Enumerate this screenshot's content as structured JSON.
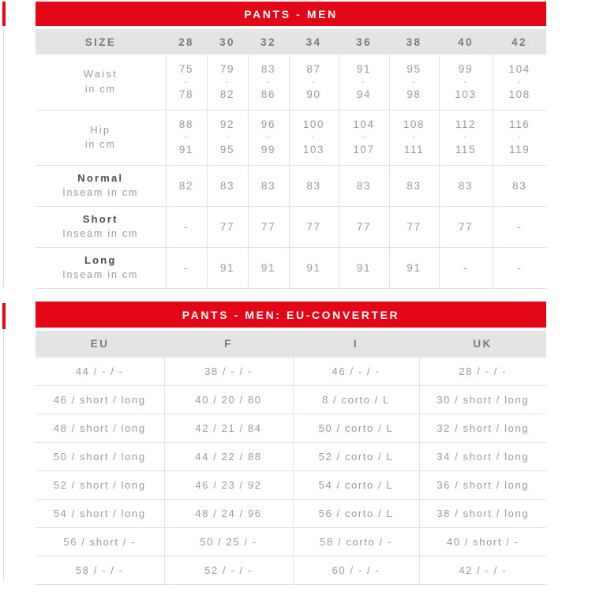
{
  "theme": {
    "accent_red": "#e30617",
    "header_row_bg": "#e4e4e4",
    "grid_line": "#e2e2e2",
    "data_text": "#9b9b9b",
    "column_header_text": "#7b7b7b",
    "emphasis_text": "#4c4c4c"
  },
  "table1": {
    "title": "PANTS - MEN",
    "size_label": "SIZE",
    "sizes": [
      "28",
      "30",
      "32",
      "34",
      "36",
      "38",
      "40",
      "42"
    ],
    "range_separator": "-",
    "rows": [
      {
        "label": "Waist",
        "sublabel": "in cm",
        "emphasis": false,
        "values": [
          [
            "75",
            "78"
          ],
          [
            "79",
            "82"
          ],
          [
            "83",
            "86"
          ],
          [
            "87",
            "90"
          ],
          [
            "91",
            "94"
          ],
          [
            "95",
            "98"
          ],
          [
            "99",
            "103"
          ],
          [
            "104",
            "108"
          ]
        ]
      },
      {
        "label": "Hip",
        "sublabel": "in cm",
        "emphasis": false,
        "values": [
          [
            "88",
            "91"
          ],
          [
            "92",
            "95"
          ],
          [
            "96",
            "99"
          ],
          [
            "100",
            "103"
          ],
          [
            "104",
            "107"
          ],
          [
            "108",
            "111"
          ],
          [
            "112",
            "115"
          ],
          [
            "116",
            "119"
          ]
        ]
      },
      {
        "label": "Normal",
        "sublabel": "Inseam in cm",
        "emphasis": true,
        "values": [
          "82",
          "83",
          "83",
          "83",
          "83",
          "83",
          "83",
          "83"
        ]
      },
      {
        "label": "Short",
        "sublabel": "Inseam in cm",
        "emphasis": true,
        "values": [
          "-",
          "77",
          "77",
          "77",
          "77",
          "77",
          "77",
          "-"
        ]
      },
      {
        "label": "Long",
        "sublabel": "Inseam in cm",
        "emphasis": true,
        "values": [
          "-",
          "91",
          "91",
          "91",
          "91",
          "91",
          "-",
          "-"
        ]
      }
    ]
  },
  "table2": {
    "title": "PANTS - MEN: EU-CONVERTER",
    "columns": [
      "EU",
      "F",
      "I",
      "UK"
    ],
    "rows": [
      [
        "44 / - / -",
        "38 / - / -",
        "46 / - / -",
        "28 / - / -"
      ],
      [
        "46 / short / long",
        "40 / 20 / 80",
        "8 / corto / L",
        "30 / short / long"
      ],
      [
        "48 / short / long",
        "42 / 21 / 84",
        "50 / corto / L",
        "32 / short / long"
      ],
      [
        "50 / short / long",
        "44 / 22 / 88",
        "52 / corto / L",
        "34 / short / long"
      ],
      [
        "52 / short / long",
        "46 / 23 / 92",
        "54 / corto / L",
        "36 / short / long"
      ],
      [
        "54 / short / long",
        "48 / 24 / 96",
        "56 / corto / L",
        "38 / short / long"
      ],
      [
        "56 / short / -",
        "50 / 25 / -",
        "58 / corto / -",
        "40 / short / -"
      ],
      [
        "58 / - / -",
        "52 / - / -",
        "60 / - / -",
        "42 / - / -"
      ]
    ]
  }
}
